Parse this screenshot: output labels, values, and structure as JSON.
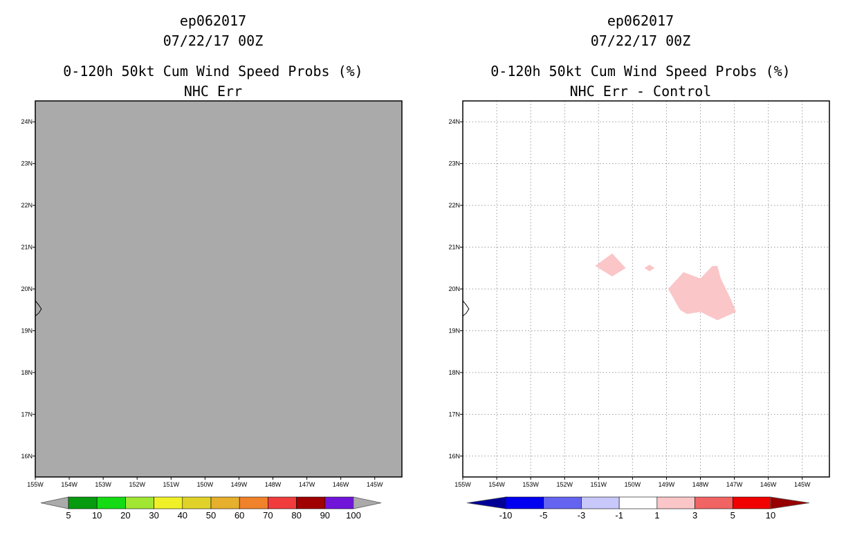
{
  "chart_data": [
    {
      "type": "heatmap",
      "panel": "left",
      "title_lines": [
        "ep062017",
        "07/22/17 00Z",
        "0-120h 50kt Cum Wind Speed Probs (%)",
        "NHC Err"
      ],
      "xlim": [
        -155,
        -144.2
      ],
      "ylim": [
        15.5,
        24.5
      ],
      "xticks": [
        -155,
        -154,
        -153,
        -152,
        -151,
        -150,
        -149,
        -148,
        -147,
        -146,
        -145
      ],
      "xtick_labels": [
        "155W",
        "154W",
        "153W",
        "152W",
        "151W",
        "150W",
        "149W",
        "148W",
        "147W",
        "146W",
        "145W"
      ],
      "yticks": [
        16,
        17,
        18,
        19,
        20,
        21,
        22,
        23,
        24
      ],
      "ytick_labels": [
        "16N",
        "17N",
        "18N",
        "19N",
        "20N",
        "21N",
        "22N",
        "23N",
        "24N"
      ],
      "grid": false,
      "background_value": "below 5",
      "background_color": "#aaaaaa",
      "colorbar": {
        "labels": [
          "5",
          "10",
          "20",
          "30",
          "40",
          "50",
          "60",
          "70",
          "80",
          "90",
          "100"
        ],
        "colors": [
          "#aaaaaa",
          "#079b0f",
          "#14db14",
          "#a0e632",
          "#f0f028",
          "#e1d22a",
          "#e6af2d",
          "#f0822c",
          "#f03c3c",
          "#a00000",
          "#7014da",
          "#aaaaaa"
        ]
      }
    },
    {
      "type": "heatmap",
      "panel": "right",
      "title_lines": [
        "ep062017",
        "07/22/17 00Z",
        "0-120h 50kt Cum Wind Speed Probs (%)",
        "NHC Err - Control"
      ],
      "xlim": [
        -155,
        -144.2
      ],
      "ylim": [
        15.5,
        24.5
      ],
      "xticks": [
        -155,
        -154,
        -153,
        -152,
        -151,
        -150,
        -149,
        -148,
        -147,
        -146,
        -145
      ],
      "xtick_labels": [
        "155W",
        "154W",
        "153W",
        "152W",
        "151W",
        "150W",
        "149W",
        "148W",
        "147W",
        "146W",
        "145W"
      ],
      "yticks": [
        16,
        17,
        18,
        19,
        20,
        21,
        22,
        23,
        24
      ],
      "ytick_labels": [
        "16N",
        "17N",
        "18N",
        "19N",
        "20N",
        "21N",
        "22N",
        "23N",
        "24N"
      ],
      "grid": true,
      "contour_regions": [
        {
          "name": "region-a",
          "value_range": "1 to 3",
          "color": "#fac6c8",
          "points": [
            [
              -151.1,
              20.55
            ],
            [
              -150.6,
              20.85
            ],
            [
              -150.2,
              20.5
            ],
            [
              -150.6,
              20.3
            ],
            [
              -151.1,
              20.55
            ]
          ]
        },
        {
          "name": "region-b",
          "value_range": "1 to 3",
          "color": "#fac6c8",
          "points": [
            [
              -149.65,
              20.5
            ],
            [
              -149.5,
              20.58
            ],
            [
              -149.35,
              20.5
            ],
            [
              -149.5,
              20.42
            ],
            [
              -149.65,
              20.5
            ]
          ]
        },
        {
          "name": "region-c",
          "value_range": "1 to 3",
          "color": "#fac6c8",
          "points": [
            [
              -148.95,
              20.0
            ],
            [
              -148.5,
              20.4
            ],
            [
              -148.0,
              20.25
            ],
            [
              -147.65,
              20.55
            ],
            [
              -147.5,
              20.55
            ],
            [
              -147.4,
              20.25
            ],
            [
              -147.1,
              19.75
            ],
            [
              -146.95,
              19.45
            ],
            [
              -147.5,
              19.25
            ],
            [
              -148.0,
              19.45
            ],
            [
              -148.4,
              19.4
            ],
            [
              -148.6,
              19.5
            ],
            [
              -148.95,
              20.0
            ]
          ]
        }
      ],
      "colorbar": {
        "labels": [
          "-10",
          "-5",
          "-3",
          "-1",
          "1",
          "3",
          "5",
          "10"
        ],
        "colors": [
          "#000096",
          "#0000f0",
          "#6464f0",
          "#c8c8fa",
          "#ffffff",
          "#fac6c8",
          "#f06464",
          "#f00000",
          "#960000"
        ]
      }
    }
  ]
}
